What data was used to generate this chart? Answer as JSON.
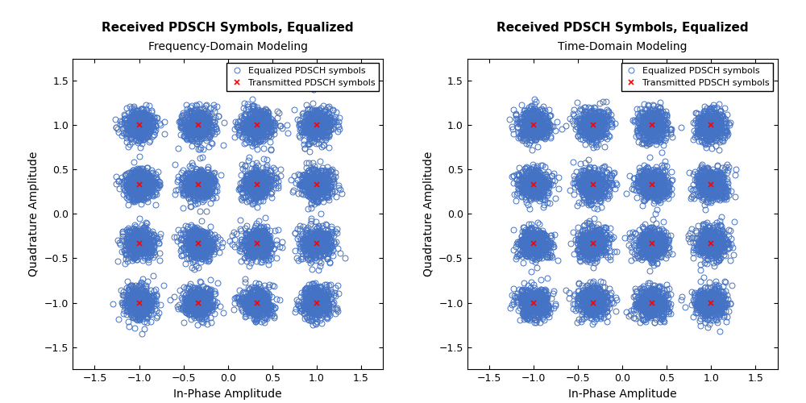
{
  "title": "Received PDSCH Symbols, Equalized",
  "subtitle1": "Frequency-Domain Modeling",
  "subtitle2": "Time-Domain Modeling",
  "xlabel": "In-Phase Amplitude",
  "ylabel": "Quadrature Amplitude",
  "constellation_points": [
    -1.0,
    -0.3333,
    0.3333,
    1.0
  ],
  "xlim": [
    -1.75,
    1.75
  ],
  "ylim": [
    -1.75,
    1.75
  ],
  "xticks": [
    -1.5,
    -1.0,
    -0.5,
    0.0,
    0.5,
    1.0,
    1.5
  ],
  "yticks": [
    -1.5,
    -1.0,
    -0.5,
    0.0,
    0.5,
    1.0,
    1.5
  ],
  "scatter_color": "#4472C4",
  "marker_color": "red",
  "n_points_per_cluster": 500,
  "noise_std1": 0.09,
  "noise_std2": 0.09,
  "marker_size": 5,
  "circle_size": 5,
  "circle_linewidth": 0.7,
  "legend_equalized": "Equalized PDSCH symbols",
  "legend_transmitted": "Transmitted PDSCH symbols",
  "background_color": "#ffffff",
  "seed": 42,
  "title_fontsize": 11,
  "subtitle_fontsize": 10,
  "xlabel_fontsize": 10,
  "ylabel_fontsize": 10,
  "legend_fontsize": 8,
  "figsize": [
    10.0,
    5.0
  ],
  "dpi": 100
}
